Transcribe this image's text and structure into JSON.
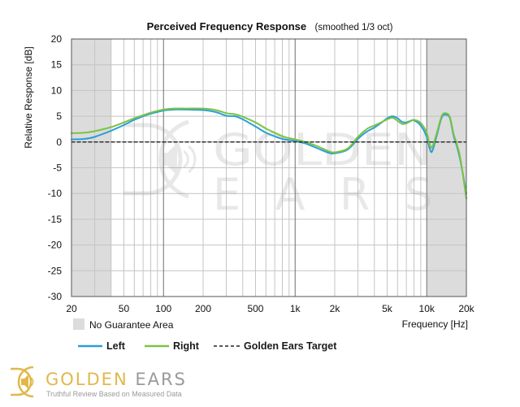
{
  "chart_data": {
    "type": "line",
    "title": "Perceived Frequency Response",
    "subtitle": "(smoothed 1/3 oct)",
    "xlabel": "Frequency [Hz]",
    "ylabel": "Relative Response [dB]",
    "xscale": "log",
    "xlim": [
      20,
      20000
    ],
    "ylim": [
      -30,
      20
    ],
    "xticks": [
      20,
      50,
      100,
      200,
      500,
      1000,
      2000,
      5000,
      10000,
      20000
    ],
    "xtick_labels": [
      "20",
      "50",
      "100",
      "200",
      "500",
      "1k",
      "2k",
      "5k",
      "10k",
      "20k"
    ],
    "yticks": [
      20,
      15,
      10,
      5,
      0,
      -5,
      -10,
      -15,
      -20,
      -25,
      -30
    ],
    "grid": true,
    "no_guarantee_regions": [
      [
        20,
        40
      ],
      [
        10000,
        20000
      ]
    ],
    "series": [
      {
        "name": "Left",
        "color": "#2a9fd8",
        "x": [
          20,
          25,
          30,
          40,
          50,
          60,
          70,
          80,
          100,
          120,
          150,
          200,
          250,
          300,
          350,
          400,
          500,
          600,
          700,
          800,
          1000,
          1200,
          1500,
          1800,
          2000,
          2500,
          3000,
          3500,
          4000,
          4500,
          5000,
          5500,
          6000,
          6500,
          7000,
          7500,
          8000,
          9000,
          10000,
          10500,
          11000,
          12000,
          13000,
          14000,
          15000,
          16000,
          17000,
          18000,
          20000
        ],
        "y": [
          0.5,
          0.6,
          1.0,
          2.2,
          3.3,
          4.3,
          5.0,
          5.5,
          6.1,
          6.3,
          6.3,
          6.2,
          5.8,
          5.1,
          5.0,
          4.4,
          3.0,
          1.8,
          1.1,
          0.6,
          0.2,
          -0.3,
          -1.3,
          -2.1,
          -2.2,
          -1.5,
          0.6,
          2.0,
          2.8,
          3.7,
          4.6,
          5.0,
          4.6,
          3.9,
          3.8,
          4.1,
          4.2,
          3.2,
          1.0,
          -1.2,
          -1.8,
          1.6,
          4.8,
          5.3,
          4.6,
          1.2,
          -1.0,
          -3.6,
          -10.0
        ]
      },
      {
        "name": "Right",
        "color": "#7cc242",
        "x": [
          20,
          25,
          30,
          40,
          50,
          60,
          70,
          80,
          100,
          120,
          150,
          200,
          250,
          300,
          350,
          400,
          500,
          600,
          700,
          800,
          1000,
          1200,
          1500,
          1800,
          2000,
          2500,
          3000,
          3500,
          4000,
          4500,
          5000,
          5500,
          6000,
          6500,
          7000,
          7500,
          8000,
          9000,
          10000,
          10500,
          11000,
          12000,
          13000,
          14000,
          15000,
          16000,
          17000,
          18000,
          20000
        ],
        "y": [
          1.7,
          1.8,
          2.1,
          2.9,
          3.8,
          4.6,
          5.2,
          5.7,
          6.3,
          6.5,
          6.5,
          6.5,
          6.2,
          5.6,
          5.4,
          4.9,
          3.8,
          2.6,
          1.8,
          1.1,
          0.5,
          0.0,
          -0.9,
          -1.8,
          -2.0,
          -1.3,
          1.0,
          2.5,
          3.2,
          3.8,
          4.4,
          4.7,
          4.1,
          3.5,
          3.6,
          4.0,
          4.3,
          3.7,
          1.8,
          -0.4,
          -1.0,
          2.0,
          5.1,
          5.6,
          4.8,
          1.6,
          -0.6,
          -3.2,
          -11.0
        ]
      },
      {
        "name": "Golden Ears Target",
        "color": "#222222",
        "dash": "dashed",
        "x": [
          20,
          20000
        ],
        "y": [
          0,
          0
        ]
      }
    ]
  },
  "legend": {
    "no_guarantee_label": "No Guarantee Area",
    "left_label": "Left",
    "right_label": "Right",
    "target_label": "Golden Ears Target"
  },
  "footer": {
    "brand": "GOLDEN EARS",
    "tagline": "Truthful Review Based on Measured Data"
  },
  "watermark": {
    "line1": "GOLDEN",
    "line2": "EARS"
  },
  "colors": {
    "gray_area": "#dcdcdc",
    "grid_major": "#6f6f6f",
    "grid_minor": "#c4c4c4",
    "brand_gold": "#e0b84a",
    "brand_gray": "#9a9a9a"
  }
}
